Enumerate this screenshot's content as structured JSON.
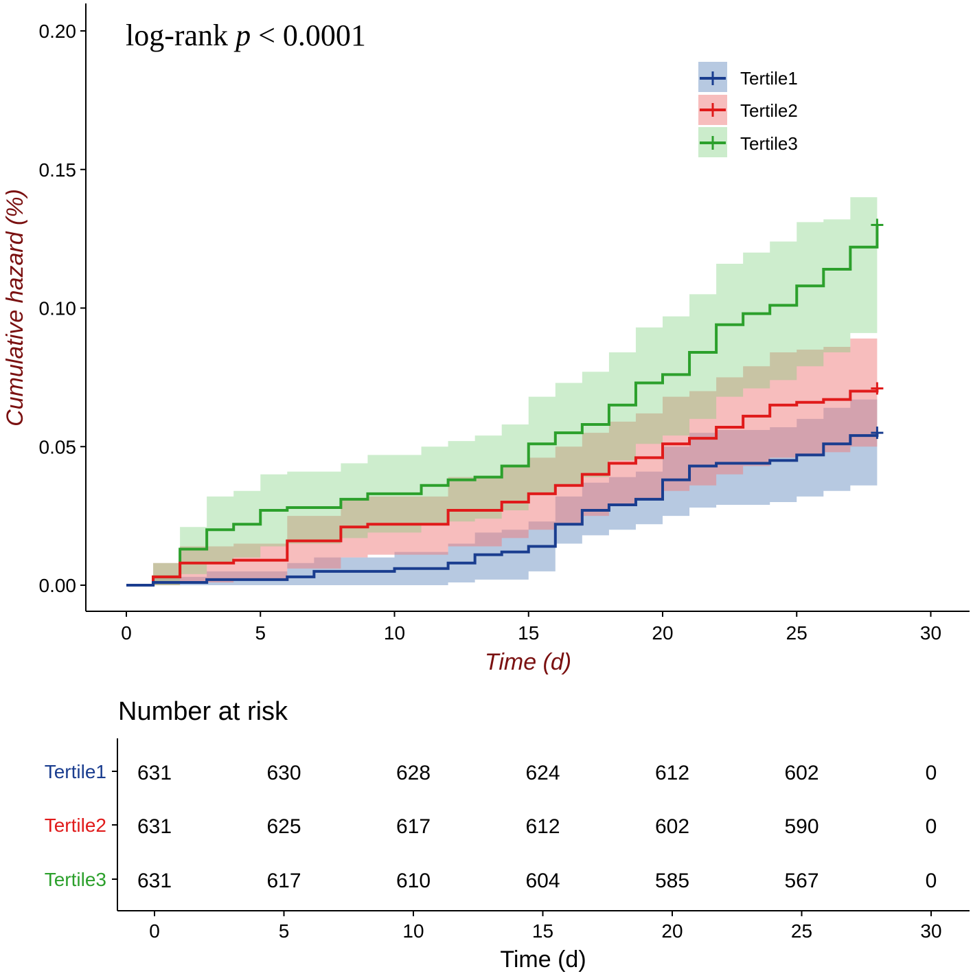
{
  "chart_data": [
    {
      "type": "line",
      "subtype": "step-with-confidence-bands",
      "annotation": {
        "prefix": "log-rank ",
        "p_symbol": "p",
        "suffix": " < 0.0001"
      },
      "xlabel": "Time (d)",
      "ylabel": "Cumulative hazard (%)",
      "xlim": [
        0,
        30
      ],
      "ylim": [
        0,
        0.2
      ],
      "xticks": [
        "0",
        "5",
        "10",
        "15",
        "20",
        "25",
        "30"
      ],
      "yticks": [
        "0.00",
        "0.05",
        "0.10",
        "0.15",
        "0.20"
      ],
      "xtick_values": [
        0,
        5,
        10,
        15,
        20,
        25,
        30
      ],
      "ytick_values": [
        0,
        0.05,
        0.1,
        0.15,
        0.2
      ],
      "legend_position": "top-right",
      "series": [
        {
          "name": "Tertile1",
          "color": "#1a3d8f",
          "band_color": "#6f93c4",
          "steps": [
            [
              0,
              0
            ],
            [
              1,
              0.001
            ],
            [
              3,
              0.002
            ],
            [
              6,
              0.003
            ],
            [
              7,
              0.005
            ],
            [
              10,
              0.006
            ],
            [
              12,
              0.008
            ],
            [
              13,
              0.011
            ],
            [
              14,
              0.012
            ],
            [
              15,
              0.014
            ],
            [
              16,
              0.022
            ],
            [
              17,
              0.027
            ],
            [
              18,
              0.029
            ],
            [
              19,
              0.031
            ],
            [
              20,
              0.038
            ],
            [
              21,
              0.043
            ],
            [
              22,
              0.044
            ],
            [
              24,
              0.045
            ],
            [
              25,
              0.047
            ],
            [
              26,
              0.051
            ],
            [
              27,
              0.054
            ],
            [
              28,
              0.055
            ]
          ],
          "lower": [
            [
              0,
              0
            ],
            [
              1,
              0
            ],
            [
              3,
              0
            ],
            [
              6,
              0
            ],
            [
              7,
              0
            ],
            [
              10,
              0
            ],
            [
              12,
              0.001
            ],
            [
              13,
              0.002
            ],
            [
              14,
              0.002
            ],
            [
              15,
              0.005
            ],
            [
              16,
              0.015
            ],
            [
              17,
              0.018
            ],
            [
              18,
              0.02
            ],
            [
              19,
              0.022
            ],
            [
              20,
              0.025
            ],
            [
              21,
              0.028
            ],
            [
              22,
              0.029
            ],
            [
              24,
              0.03
            ],
            [
              25,
              0.032
            ],
            [
              26,
              0.034
            ],
            [
              27,
              0.036
            ],
            [
              28,
              0.036
            ]
          ],
          "upper": [
            [
              0,
              0
            ],
            [
              1,
              0.003
            ],
            [
              3,
              0.005
            ],
            [
              6,
              0.008
            ],
            [
              7,
              0.01
            ],
            [
              10,
              0.012
            ],
            [
              12,
              0.015
            ],
            [
              13,
              0.019
            ],
            [
              14,
              0.02
            ],
            [
              15,
              0.023
            ],
            [
              16,
              0.032
            ],
            [
              17,
              0.037
            ],
            [
              18,
              0.039
            ],
            [
              19,
              0.041
            ],
            [
              20,
              0.05
            ],
            [
              21,
              0.055
            ],
            [
              22,
              0.056
            ],
            [
              24,
              0.057
            ],
            [
              25,
              0.06
            ],
            [
              26,
              0.064
            ],
            [
              27,
              0.067
            ],
            [
              28,
              0.068
            ]
          ],
          "censor_at": 28
        },
        {
          "name": "Tertile2",
          "color": "#e01a1a",
          "band_color": "#f07c7c",
          "steps": [
            [
              0,
              0
            ],
            [
              1,
              0.003
            ],
            [
              2,
              0.008
            ],
            [
              4,
              0.009
            ],
            [
              6,
              0.016
            ],
            [
              8,
              0.021
            ],
            [
              9,
              0.022
            ],
            [
              12,
              0.027
            ],
            [
              14,
              0.03
            ],
            [
              15,
              0.033
            ],
            [
              16,
              0.036
            ],
            [
              17,
              0.04
            ],
            [
              18,
              0.044
            ],
            [
              19,
              0.046
            ],
            [
              20,
              0.051
            ],
            [
              21,
              0.053
            ],
            [
              22,
              0.057
            ],
            [
              23,
              0.061
            ],
            [
              24,
              0.065
            ],
            [
              25,
              0.066
            ],
            [
              26,
              0.067
            ],
            [
              27,
              0.07
            ],
            [
              28,
              0.071
            ]
          ],
          "lower": [
            [
              0,
              0
            ],
            [
              1,
              0
            ],
            [
              2,
              0.001
            ],
            [
              4,
              0.002
            ],
            [
              6,
              0.006
            ],
            [
              8,
              0.01
            ],
            [
              9,
              0.011
            ],
            [
              12,
              0.014
            ],
            [
              14,
              0.017
            ],
            [
              15,
              0.02
            ],
            [
              16,
              0.022
            ],
            [
              17,
              0.025
            ],
            [
              18,
              0.029
            ],
            [
              19,
              0.031
            ],
            [
              20,
              0.034
            ],
            [
              21,
              0.036
            ],
            [
              22,
              0.04
            ],
            [
              23,
              0.043
            ],
            [
              24,
              0.046
            ],
            [
              25,
              0.047
            ],
            [
              26,
              0.048
            ],
            [
              27,
              0.05
            ],
            [
              28,
              0.05
            ]
          ],
          "upper": [
            [
              0,
              0
            ],
            [
              1,
              0.008
            ],
            [
              2,
              0.014
            ],
            [
              4,
              0.015
            ],
            [
              6,
              0.025
            ],
            [
              8,
              0.031
            ],
            [
              9,
              0.032
            ],
            [
              12,
              0.039
            ],
            [
              14,
              0.043
            ],
            [
              15,
              0.046
            ],
            [
              16,
              0.05
            ],
            [
              17,
              0.055
            ],
            [
              18,
              0.059
            ],
            [
              19,
              0.062
            ],
            [
              20,
              0.068
            ],
            [
              21,
              0.07
            ],
            [
              22,
              0.075
            ],
            [
              23,
              0.079
            ],
            [
              24,
              0.084
            ],
            [
              25,
              0.085
            ],
            [
              26,
              0.086
            ],
            [
              27,
              0.089
            ],
            [
              28,
              0.089
            ]
          ],
          "censor_at": 28
        },
        {
          "name": "Tertile3",
          "color": "#2ca02c",
          "band_color": "#7ccf7c",
          "steps": [
            [
              0,
              0
            ],
            [
              1,
              0.003
            ],
            [
              2,
              0.013
            ],
            [
              3,
              0.02
            ],
            [
              4,
              0.022
            ],
            [
              5,
              0.027
            ],
            [
              6,
              0.028
            ],
            [
              8,
              0.031
            ],
            [
              9,
              0.033
            ],
            [
              11,
              0.036
            ],
            [
              12,
              0.038
            ],
            [
              13,
              0.039
            ],
            [
              14,
              0.043
            ],
            [
              15,
              0.051
            ],
            [
              16,
              0.055
            ],
            [
              17,
              0.058
            ],
            [
              18,
              0.065
            ],
            [
              19,
              0.073
            ],
            [
              20,
              0.076
            ],
            [
              21,
              0.084
            ],
            [
              22,
              0.094
            ],
            [
              23,
              0.098
            ],
            [
              24,
              0.101
            ],
            [
              25,
              0.108
            ],
            [
              26,
              0.114
            ],
            [
              27,
              0.122
            ],
            [
              28,
              0.13
            ]
          ],
          "lower": [
            [
              0,
              0
            ],
            [
              1,
              0
            ],
            [
              2,
              0.004
            ],
            [
              3,
              0.008
            ],
            [
              4,
              0.01
            ],
            [
              5,
              0.014
            ],
            [
              6,
              0.015
            ],
            [
              8,
              0.017
            ],
            [
              9,
              0.019
            ],
            [
              11,
              0.022
            ],
            [
              12,
              0.023
            ],
            [
              13,
              0.024
            ],
            [
              14,
              0.027
            ],
            [
              15,
              0.033
            ],
            [
              16,
              0.036
            ],
            [
              17,
              0.039
            ],
            [
              18,
              0.045
            ],
            [
              19,
              0.051
            ],
            [
              20,
              0.054
            ],
            [
              21,
              0.06
            ],
            [
              22,
              0.068
            ],
            [
              23,
              0.071
            ],
            [
              24,
              0.074
            ],
            [
              25,
              0.079
            ],
            [
              26,
              0.084
            ],
            [
              27,
              0.091
            ],
            [
              28,
              0.097
            ]
          ],
          "upper": [
            [
              0,
              0
            ],
            [
              1,
              0.008
            ],
            [
              2,
              0.021
            ],
            [
              3,
              0.032
            ],
            [
              4,
              0.034
            ],
            [
              5,
              0.04
            ],
            [
              6,
              0.041
            ],
            [
              8,
              0.044
            ],
            [
              9,
              0.047
            ],
            [
              11,
              0.05
            ],
            [
              12,
              0.052
            ],
            [
              13,
              0.054
            ],
            [
              14,
              0.058
            ],
            [
              15,
              0.068
            ],
            [
              16,
              0.073
            ],
            [
              17,
              0.077
            ],
            [
              18,
              0.084
            ],
            [
              19,
              0.093
            ],
            [
              20,
              0.097
            ],
            [
              21,
              0.105
            ],
            [
              22,
              0.116
            ],
            [
              23,
              0.12
            ],
            [
              24,
              0.124
            ],
            [
              25,
              0.131
            ],
            [
              26,
              0.132
            ],
            [
              27,
              0.14
            ],
            [
              28,
              0.147
            ]
          ],
          "censor_at": 28
        }
      ]
    },
    {
      "type": "table",
      "title": "Number at risk",
      "xlabel": "Time (d)",
      "xticks": [
        "0",
        "5",
        "10",
        "15",
        "20",
        "25",
        "30"
      ],
      "xtick_values": [
        0,
        5,
        10,
        15,
        20,
        25,
        30
      ],
      "rows": [
        {
          "name": "Tertile1",
          "color": "#1a3d8f",
          "values": [
            "631",
            "630",
            "628",
            "624",
            "612",
            "602",
            "0"
          ]
        },
        {
          "name": "Tertile2",
          "color": "#e01a1a",
          "values": [
            "631",
            "625",
            "617",
            "612",
            "602",
            "590",
            "0"
          ]
        },
        {
          "name": "Tertile3",
          "color": "#2ca02c",
          "values": [
            "631",
            "617",
            "610",
            "604",
            "585",
            "567",
            "0"
          ]
        }
      ]
    }
  ],
  "colors": {
    "axis": "#000000",
    "axis_title": "#7a1010"
  }
}
